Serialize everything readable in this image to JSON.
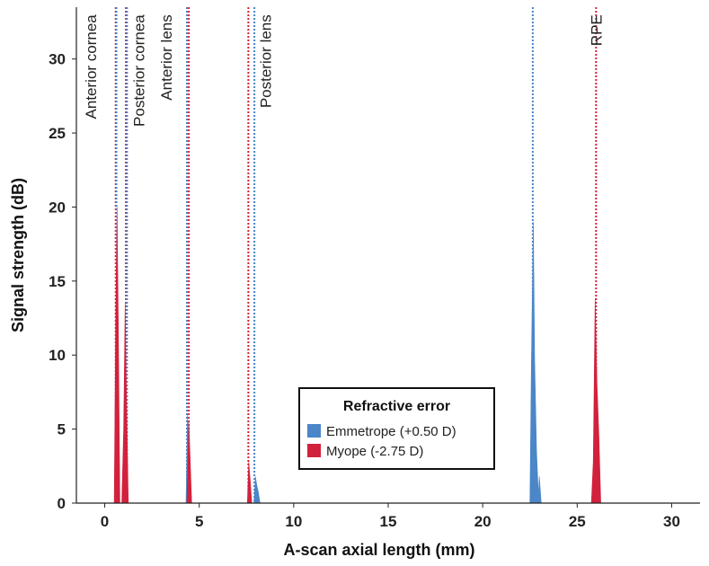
{
  "chart_data": {
    "type": "area",
    "xlabel": "A-scan axial length (mm)",
    "ylabel": "Signal strength (dB)",
    "xlim": [
      -1.5,
      31.5
    ],
    "ylim": [
      0,
      33.5
    ],
    "xticks": [
      0,
      5,
      10,
      15,
      20,
      25,
      30
    ],
    "yticks": [
      0,
      5,
      10,
      15,
      20,
      25,
      30
    ],
    "grid": false,
    "legend": {
      "title": "Refractive error",
      "placement": "lower-center",
      "entries": [
        "Emmetrope (+0.50 D)",
        "Myope (-2.75 D)"
      ]
    },
    "series": [
      {
        "name": "Emmetrope (+0.50 D)",
        "color": "#4a86c8",
        "peaks": [
          {
            "x": [
              0.55,
              0.62,
              0.66,
              0.72
            ],
            "y": [
              0,
              3.5,
              5.5,
              0
            ]
          },
          {
            "x": [
              1.0,
              1.06,
              1.12,
              1.2
            ],
            "y": [
              0,
              3.5,
              5.0,
              0
            ]
          },
          {
            "x": [
              4.3,
              4.38,
              4.45,
              4.55
            ],
            "y": [
              0,
              6.0,
              4.0,
              0
            ]
          },
          {
            "x": [
              7.9,
              7.97,
              8.05,
              8.12,
              8.22
            ],
            "y": [
              0,
              1.8,
              1.2,
              0.8,
              0
            ]
          },
          {
            "x": [
              22.5,
              22.58,
              22.68,
              22.75,
              22.85,
              22.95,
              23.0,
              23.1
            ],
            "y": [
              0,
              9.7,
              19.0,
              9.6,
              3.5,
              0.5,
              1.8,
              0
            ]
          }
        ]
      },
      {
        "name": "Myope (-2.75 D)",
        "color": "#d2213c",
        "peaks": [
          {
            "x": [
              0.5,
              0.58,
              0.65,
              0.72,
              0.8
            ],
            "y": [
              0,
              12.0,
              20.0,
              12.0,
              0
            ]
          },
          {
            "x": [
              0.9,
              1.0,
              1.08,
              1.15,
              1.25
            ],
            "y": [
              0,
              5.0,
              13.5,
              7.5,
              0
            ]
          },
          {
            "x": [
              4.35,
              4.45,
              4.52,
              4.6
            ],
            "y": [
              0,
              5.5,
              3.0,
              0
            ]
          },
          {
            "x": [
              7.55,
              7.62,
              7.7,
              7.78
            ],
            "y": [
              0,
              2.8,
              1.5,
              0
            ]
          },
          {
            "x": [
              25.75,
              25.85,
              25.95,
              26.05,
              26.15,
              26.25
            ],
            "y": [
              0,
              2.8,
              13.8,
              8.0,
              4.5,
              0
            ]
          }
        ]
      }
    ],
    "reference_lines": [
      {
        "x": 0.58,
        "color": "#d2213c"
      },
      {
        "x": 0.62,
        "color": "#4a86c8"
      },
      {
        "x": 1.12,
        "color": "#d2213c"
      },
      {
        "x": 1.18,
        "color": "#4a86c8"
      },
      {
        "x": 4.35,
        "color": "#4a86c8"
      },
      {
        "x": 4.45,
        "color": "#d2213c"
      },
      {
        "x": 7.6,
        "color": "#d2213c"
      },
      {
        "x": 7.92,
        "color": "#4a86c8"
      },
      {
        "x": 22.65,
        "color": "#4a86c8"
      },
      {
        "x": 26.0,
        "color": "#d2213c"
      }
    ],
    "annotations": [
      {
        "text": "Anterior cornea",
        "x": -0.45,
        "y": 33
      },
      {
        "text": "Posterior cornea",
        "x": 2.1,
        "y": 33
      },
      {
        "text": "Anterior lens",
        "x": 3.55,
        "y": 33
      },
      {
        "text": "Posterior lens",
        "x": 8.8,
        "y": 33
      },
      {
        "text": "RPE",
        "x": 26.3,
        "y": 33
      }
    ]
  }
}
